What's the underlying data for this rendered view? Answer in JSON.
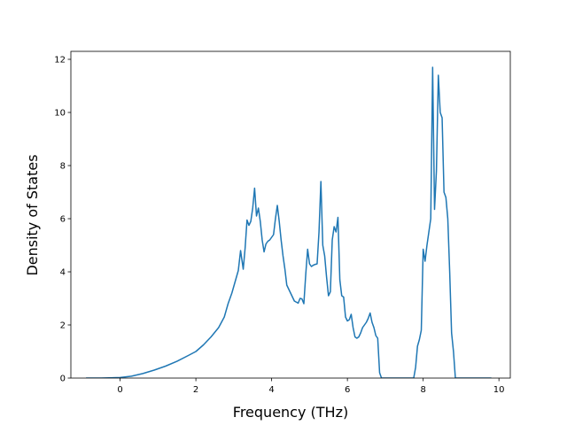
{
  "chart_data": {
    "type": "line",
    "title": "",
    "xlabel": "Frequency (THz)",
    "ylabel": "Density of States",
    "xlim": [
      -1.3,
      10.3
    ],
    "ylim": [
      0,
      12.3
    ],
    "xticks": [
      0,
      2,
      4,
      6,
      8,
      10
    ],
    "yticks": [
      0,
      2,
      4,
      6,
      8,
      10,
      12
    ],
    "grid": false,
    "line_color": "#1f77b4",
    "series": [
      {
        "x": [
          -0.9,
          -0.5,
          0.0,
          0.3,
          0.6,
          0.9,
          1.2,
          1.5,
          1.8,
          2.0,
          2.2,
          2.4,
          2.6,
          2.75,
          2.85,
          2.95,
          3.05,
          3.12,
          3.18,
          3.25,
          3.3,
          3.35,
          3.4,
          3.45,
          3.5,
          3.55,
          3.6,
          3.65,
          3.7,
          3.75,
          3.8,
          3.85,
          3.9,
          3.95,
          4.0,
          4.05,
          4.1,
          4.15,
          4.2,
          4.25,
          4.3,
          4.35,
          4.4,
          4.5,
          4.6,
          4.7,
          4.75,
          4.8,
          4.85,
          4.9,
          4.95,
          5.0,
          5.05,
          5.1,
          5.15,
          5.2,
          5.25,
          5.3,
          5.35,
          5.4,
          5.45,
          5.5,
          5.55,
          5.6,
          5.65,
          5.7,
          5.75,
          5.8,
          5.85,
          5.9,
          5.95,
          6.0,
          6.05,
          6.1,
          6.15,
          6.2,
          6.25,
          6.3,
          6.35,
          6.4,
          6.45,
          6.5,
          6.55,
          6.6,
          6.65,
          6.7,
          6.75,
          6.8,
          6.85,
          6.9,
          6.95,
          7.0,
          7.5,
          7.75,
          7.8,
          7.85,
          7.9,
          7.95,
          8.0,
          8.05,
          8.1,
          8.15,
          8.2,
          8.25,
          8.3,
          8.35,
          8.4,
          8.45,
          8.5,
          8.55,
          8.6,
          8.65,
          8.7,
          8.75,
          8.8,
          8.85,
          8.9,
          8.95,
          9.0,
          9.5,
          9.8
        ],
        "y": [
          0.0,
          0.0,
          0.02,
          0.07,
          0.17,
          0.3,
          0.45,
          0.63,
          0.85,
          1.0,
          1.25,
          1.55,
          1.9,
          2.3,
          2.8,
          3.2,
          3.7,
          4.05,
          4.8,
          4.1,
          4.9,
          5.95,
          5.75,
          5.9,
          6.4,
          7.15,
          6.1,
          6.4,
          5.9,
          5.2,
          4.75,
          5.05,
          5.15,
          5.2,
          5.3,
          5.4,
          6.0,
          6.5,
          5.9,
          5.2,
          4.6,
          4.1,
          3.5,
          3.2,
          2.9,
          2.82,
          3.0,
          2.98,
          2.8,
          3.9,
          4.85,
          4.3,
          4.2,
          4.25,
          4.28,
          4.3,
          5.5,
          7.4,
          5.0,
          4.6,
          3.8,
          3.1,
          3.25,
          5.2,
          5.7,
          5.5,
          6.05,
          3.7,
          3.1,
          3.05,
          2.3,
          2.15,
          2.2,
          2.4,
          1.9,
          1.55,
          1.5,
          1.55,
          1.7,
          1.9,
          2.0,
          2.1,
          2.25,
          2.45,
          2.1,
          1.9,
          1.6,
          1.5,
          0.2,
          0.0,
          0.0,
          0.0,
          0.0,
          0.0,
          0.4,
          1.2,
          1.45,
          1.8,
          4.85,
          4.4,
          5.0,
          5.5,
          6.0,
          11.7,
          6.35,
          7.8,
          11.4,
          10.0,
          9.8,
          7.0,
          6.8,
          6.0,
          4.0,
          1.7,
          1.0,
          0.0,
          0.0,
          0.0,
          0.0,
          0.0,
          0.0
        ]
      }
    ]
  }
}
